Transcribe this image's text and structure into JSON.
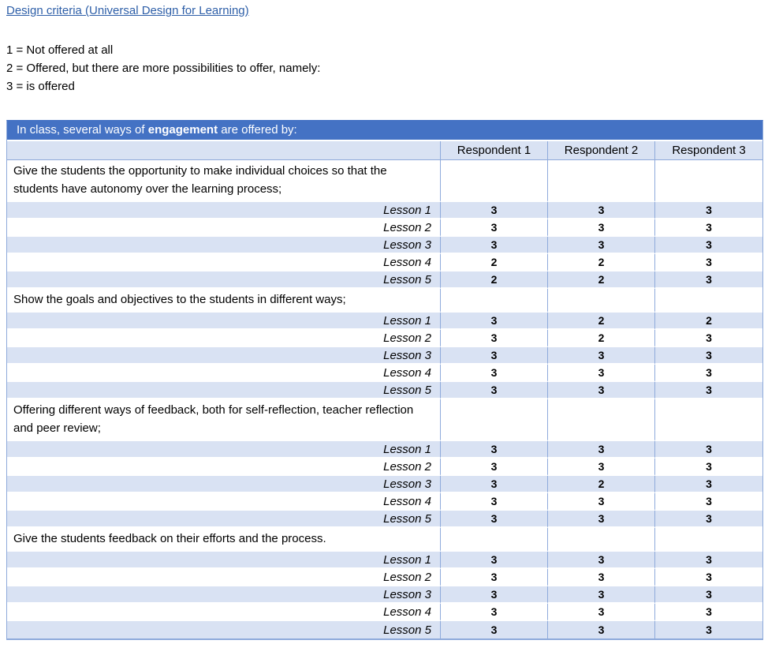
{
  "page": {
    "title_link": "Design criteria (Universal Design for Learning)",
    "legend": [
      "1 = Not offered at all",
      "2 = Offered, but there are more possibilities to offer, namely:",
      "3 = is offered"
    ]
  },
  "table": {
    "banner": {
      "prefix": "In class, several ways of ",
      "bold_word": "engagement",
      "suffix": " are offered by:"
    },
    "columns": [
      "Respondent 1",
      "Respondent 2",
      "Respondent 3"
    ],
    "sections": [
      {
        "criterion": "Give the students the opportunity to make individual choices so that the students have autonomy over the learning process;",
        "rows": [
          {
            "label": "Lesson 1",
            "values": [
              "3",
              "3",
              "3"
            ]
          },
          {
            "label": "Lesson 2",
            "values": [
              "3",
              "3",
              "3"
            ]
          },
          {
            "label": "Lesson 3",
            "values": [
              "3",
              "3",
              "3"
            ]
          },
          {
            "label": "Lesson 4",
            "values": [
              "2",
              "2",
              "3"
            ]
          },
          {
            "label": "Lesson 5",
            "values": [
              "2",
              "2",
              "3"
            ]
          }
        ]
      },
      {
        "criterion": "Show the goals and objectives to the students in different ways;",
        "rows": [
          {
            "label": "Lesson 1",
            "values": [
              "3",
              "2",
              "2"
            ]
          },
          {
            "label": "Lesson 2",
            "values": [
              "3",
              "2",
              "3"
            ]
          },
          {
            "label": "Lesson 3",
            "values": [
              "3",
              "3",
              "3"
            ]
          },
          {
            "label": "Lesson 4",
            "values": [
              "3",
              "3",
              "3"
            ]
          },
          {
            "label": "Lesson 5",
            "values": [
              "3",
              "3",
              "3"
            ]
          }
        ]
      },
      {
        "criterion": "Offering different ways of feedback, both for self-reflection, teacher reflection and peer review;",
        "rows": [
          {
            "label": "Lesson 1",
            "values": [
              "3",
              "3",
              "3"
            ]
          },
          {
            "label": "Lesson 2",
            "values": [
              "3",
              "3",
              "3"
            ]
          },
          {
            "label": "Lesson 3",
            "values": [
              "3",
              "2",
              "3"
            ]
          },
          {
            "label": "Lesson 4",
            "values": [
              "3",
              "3",
              "3"
            ]
          },
          {
            "label": "Lesson 5",
            "values": [
              "3",
              "3",
              "3"
            ]
          }
        ]
      },
      {
        "criterion": "Give the students feedback on their efforts and the process.",
        "rows": [
          {
            "label": "Lesson 1",
            "values": [
              "3",
              "3",
              "3"
            ]
          },
          {
            "label": "Lesson 2",
            "values": [
              "3",
              "3",
              "3"
            ]
          },
          {
            "label": "Lesson 3",
            "values": [
              "3",
              "3",
              "3"
            ]
          },
          {
            "label": "Lesson 4",
            "values": [
              "3",
              "3",
              "3"
            ]
          },
          {
            "label": "Lesson 5",
            "values": [
              "3",
              "3",
              "3"
            ]
          }
        ]
      }
    ]
  },
  "colors": {
    "banner_bg": "#4472C4",
    "banner_text": "#FFFFFF",
    "shaded_row": "#D9E2F3",
    "border": "#8EAADB",
    "link": "#2E5FA8",
    "text": "#000000"
  }
}
